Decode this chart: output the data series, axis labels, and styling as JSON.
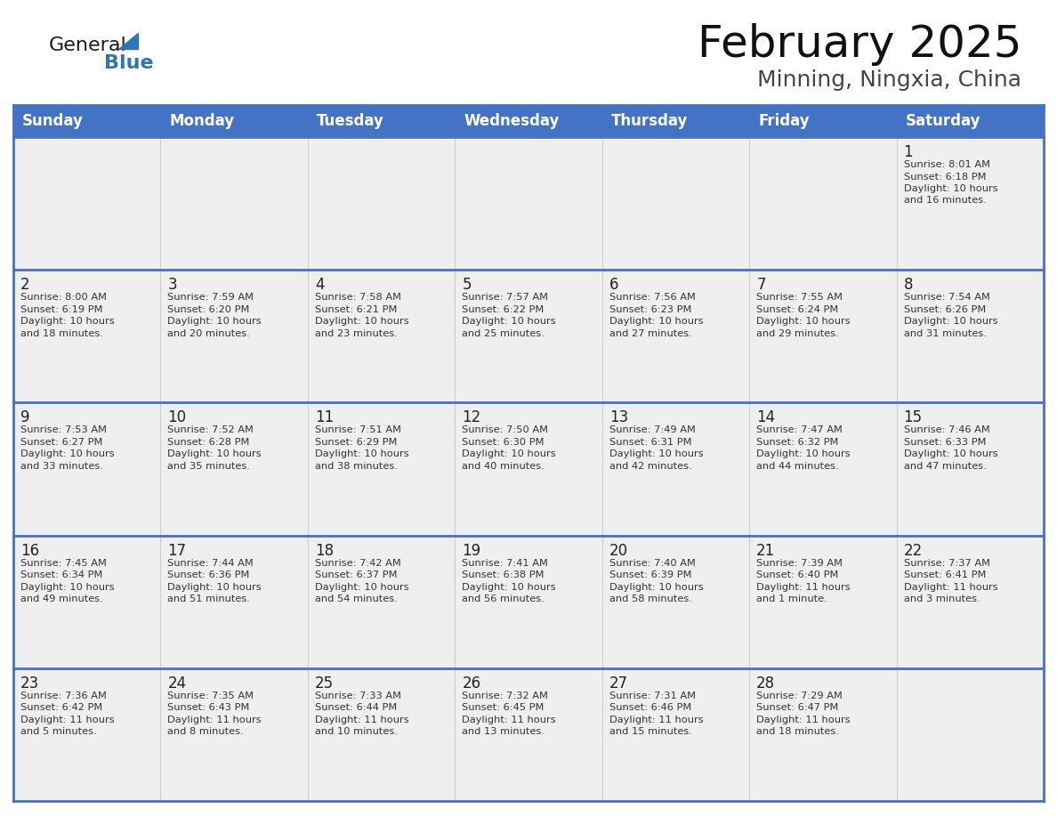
{
  "title": "February 2025",
  "subtitle": "Minning, Ningxia, China",
  "days_of_week": [
    "Sunday",
    "Monday",
    "Tuesday",
    "Wednesday",
    "Thursday",
    "Friday",
    "Saturday"
  ],
  "header_bg": "#4472C4",
  "header_text": "#FFFFFF",
  "cell_bg": "#EFEFEF",
  "border_color": "#4472C4",
  "text_color": "#333333",
  "day_num_color": "#222222",
  "title_color": "#111111",
  "subtitle_color": "#444444",
  "logo_general_color": "#1a1a1a",
  "logo_blue_color": "#2E75B6",
  "weeks": [
    [
      {
        "day": null,
        "info": ""
      },
      {
        "day": null,
        "info": ""
      },
      {
        "day": null,
        "info": ""
      },
      {
        "day": null,
        "info": ""
      },
      {
        "day": null,
        "info": ""
      },
      {
        "day": null,
        "info": ""
      },
      {
        "day": 1,
        "info": "Sunrise: 8:01 AM\nSunset: 6:18 PM\nDaylight: 10 hours\nand 16 minutes."
      }
    ],
    [
      {
        "day": 2,
        "info": "Sunrise: 8:00 AM\nSunset: 6:19 PM\nDaylight: 10 hours\nand 18 minutes."
      },
      {
        "day": 3,
        "info": "Sunrise: 7:59 AM\nSunset: 6:20 PM\nDaylight: 10 hours\nand 20 minutes."
      },
      {
        "day": 4,
        "info": "Sunrise: 7:58 AM\nSunset: 6:21 PM\nDaylight: 10 hours\nand 23 minutes."
      },
      {
        "day": 5,
        "info": "Sunrise: 7:57 AM\nSunset: 6:22 PM\nDaylight: 10 hours\nand 25 minutes."
      },
      {
        "day": 6,
        "info": "Sunrise: 7:56 AM\nSunset: 6:23 PM\nDaylight: 10 hours\nand 27 minutes."
      },
      {
        "day": 7,
        "info": "Sunrise: 7:55 AM\nSunset: 6:24 PM\nDaylight: 10 hours\nand 29 minutes."
      },
      {
        "day": 8,
        "info": "Sunrise: 7:54 AM\nSunset: 6:26 PM\nDaylight: 10 hours\nand 31 minutes."
      }
    ],
    [
      {
        "day": 9,
        "info": "Sunrise: 7:53 AM\nSunset: 6:27 PM\nDaylight: 10 hours\nand 33 minutes."
      },
      {
        "day": 10,
        "info": "Sunrise: 7:52 AM\nSunset: 6:28 PM\nDaylight: 10 hours\nand 35 minutes."
      },
      {
        "day": 11,
        "info": "Sunrise: 7:51 AM\nSunset: 6:29 PM\nDaylight: 10 hours\nand 38 minutes."
      },
      {
        "day": 12,
        "info": "Sunrise: 7:50 AM\nSunset: 6:30 PM\nDaylight: 10 hours\nand 40 minutes."
      },
      {
        "day": 13,
        "info": "Sunrise: 7:49 AM\nSunset: 6:31 PM\nDaylight: 10 hours\nand 42 minutes."
      },
      {
        "day": 14,
        "info": "Sunrise: 7:47 AM\nSunset: 6:32 PM\nDaylight: 10 hours\nand 44 minutes."
      },
      {
        "day": 15,
        "info": "Sunrise: 7:46 AM\nSunset: 6:33 PM\nDaylight: 10 hours\nand 47 minutes."
      }
    ],
    [
      {
        "day": 16,
        "info": "Sunrise: 7:45 AM\nSunset: 6:34 PM\nDaylight: 10 hours\nand 49 minutes."
      },
      {
        "day": 17,
        "info": "Sunrise: 7:44 AM\nSunset: 6:36 PM\nDaylight: 10 hours\nand 51 minutes."
      },
      {
        "day": 18,
        "info": "Sunrise: 7:42 AM\nSunset: 6:37 PM\nDaylight: 10 hours\nand 54 minutes."
      },
      {
        "day": 19,
        "info": "Sunrise: 7:41 AM\nSunset: 6:38 PM\nDaylight: 10 hours\nand 56 minutes."
      },
      {
        "day": 20,
        "info": "Sunrise: 7:40 AM\nSunset: 6:39 PM\nDaylight: 10 hours\nand 58 minutes."
      },
      {
        "day": 21,
        "info": "Sunrise: 7:39 AM\nSunset: 6:40 PM\nDaylight: 11 hours\nand 1 minute."
      },
      {
        "day": 22,
        "info": "Sunrise: 7:37 AM\nSunset: 6:41 PM\nDaylight: 11 hours\nand 3 minutes."
      }
    ],
    [
      {
        "day": 23,
        "info": "Sunrise: 7:36 AM\nSunset: 6:42 PM\nDaylight: 11 hours\nand 5 minutes."
      },
      {
        "day": 24,
        "info": "Sunrise: 7:35 AM\nSunset: 6:43 PM\nDaylight: 11 hours\nand 8 minutes."
      },
      {
        "day": 25,
        "info": "Sunrise: 7:33 AM\nSunset: 6:44 PM\nDaylight: 11 hours\nand 10 minutes."
      },
      {
        "day": 26,
        "info": "Sunrise: 7:32 AM\nSunset: 6:45 PM\nDaylight: 11 hours\nand 13 minutes."
      },
      {
        "day": 27,
        "info": "Sunrise: 7:31 AM\nSunset: 6:46 PM\nDaylight: 11 hours\nand 15 minutes."
      },
      {
        "day": 28,
        "info": "Sunrise: 7:29 AM\nSunset: 6:47 PM\nDaylight: 11 hours\nand 18 minutes."
      },
      {
        "day": null,
        "info": ""
      }
    ]
  ]
}
